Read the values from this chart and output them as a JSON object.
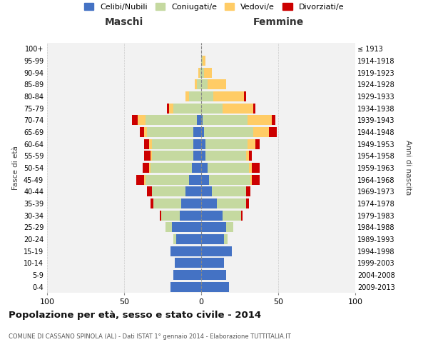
{
  "age_groups": [
    "0-4",
    "5-9",
    "10-14",
    "15-19",
    "20-24",
    "25-29",
    "30-34",
    "35-39",
    "40-44",
    "45-49",
    "50-54",
    "55-59",
    "60-64",
    "65-69",
    "70-74",
    "75-79",
    "80-84",
    "85-89",
    "90-94",
    "95-99",
    "100+"
  ],
  "birth_years": [
    "2009-2013",
    "2004-2008",
    "1999-2003",
    "1994-1998",
    "1989-1993",
    "1984-1988",
    "1979-1983",
    "1974-1978",
    "1969-1973",
    "1964-1968",
    "1959-1963",
    "1954-1958",
    "1949-1953",
    "1944-1948",
    "1939-1943",
    "1934-1938",
    "1929-1933",
    "1924-1928",
    "1919-1923",
    "1914-1918",
    "≤ 1913"
  ],
  "colors": {
    "celibi": "#4472C4",
    "coniugati": "#C5D9A0",
    "vedovi": "#FFCC66",
    "divorziati": "#CC0000"
  },
  "maschi": {
    "celibi": [
      20,
      18,
      17,
      20,
      16,
      19,
      14,
      13,
      10,
      8,
      6,
      5,
      5,
      5,
      3,
      0,
      0,
      0,
      0,
      0,
      0
    ],
    "coniugati": [
      0,
      0,
      0,
      0,
      2,
      4,
      12,
      18,
      22,
      28,
      27,
      27,
      27,
      30,
      33,
      18,
      8,
      3,
      1,
      0,
      0
    ],
    "vedovi": [
      0,
      0,
      0,
      0,
      0,
      0,
      0,
      0,
      0,
      1,
      1,
      1,
      2,
      2,
      5,
      3,
      2,
      1,
      1,
      0,
      0
    ],
    "divorziati": [
      0,
      0,
      0,
      0,
      0,
      0,
      1,
      2,
      3,
      5,
      4,
      4,
      3,
      3,
      4,
      1,
      0,
      0,
      0,
      0,
      0
    ]
  },
  "femmine": {
    "nubili": [
      18,
      16,
      15,
      20,
      15,
      16,
      14,
      10,
      7,
      5,
      4,
      3,
      3,
      2,
      1,
      0,
      0,
      0,
      0,
      0,
      0
    ],
    "coniugate": [
      0,
      0,
      0,
      0,
      2,
      5,
      12,
      19,
      22,
      27,
      27,
      26,
      27,
      32,
      29,
      14,
      8,
      4,
      2,
      1,
      0
    ],
    "vedove": [
      0,
      0,
      0,
      0,
      0,
      0,
      0,
      0,
      0,
      1,
      2,
      2,
      5,
      10,
      16,
      20,
      20,
      12,
      5,
      2,
      0
    ],
    "divorziate": [
      0,
      0,
      0,
      0,
      0,
      0,
      1,
      2,
      3,
      5,
      5,
      2,
      3,
      5,
      2,
      1,
      1,
      0,
      0,
      0,
      0
    ]
  },
  "title": "Popolazione per età, sesso e stato civile - 2014",
  "subtitle": "COMUNE DI CASSANO SPINOLA (AL) - Dati ISTAT 1° gennaio 2014 - Elaborazione TUTTITALIA.IT",
  "xlabel_left": "Maschi",
  "xlabel_right": "Femmine",
  "ylabel_left": "Fasce di età",
  "ylabel_right": "Anni di nascita",
  "xlim": 100,
  "legend_labels": [
    "Celibi/Nubili",
    "Coniugati/e",
    "Vedovi/e",
    "Divorziati/e"
  ],
  "bg_color": "#FFFFFF",
  "plot_bg_color": "#F2F2F2",
  "grid_color": "#CCCCCC",
  "bar_height": 0.85
}
